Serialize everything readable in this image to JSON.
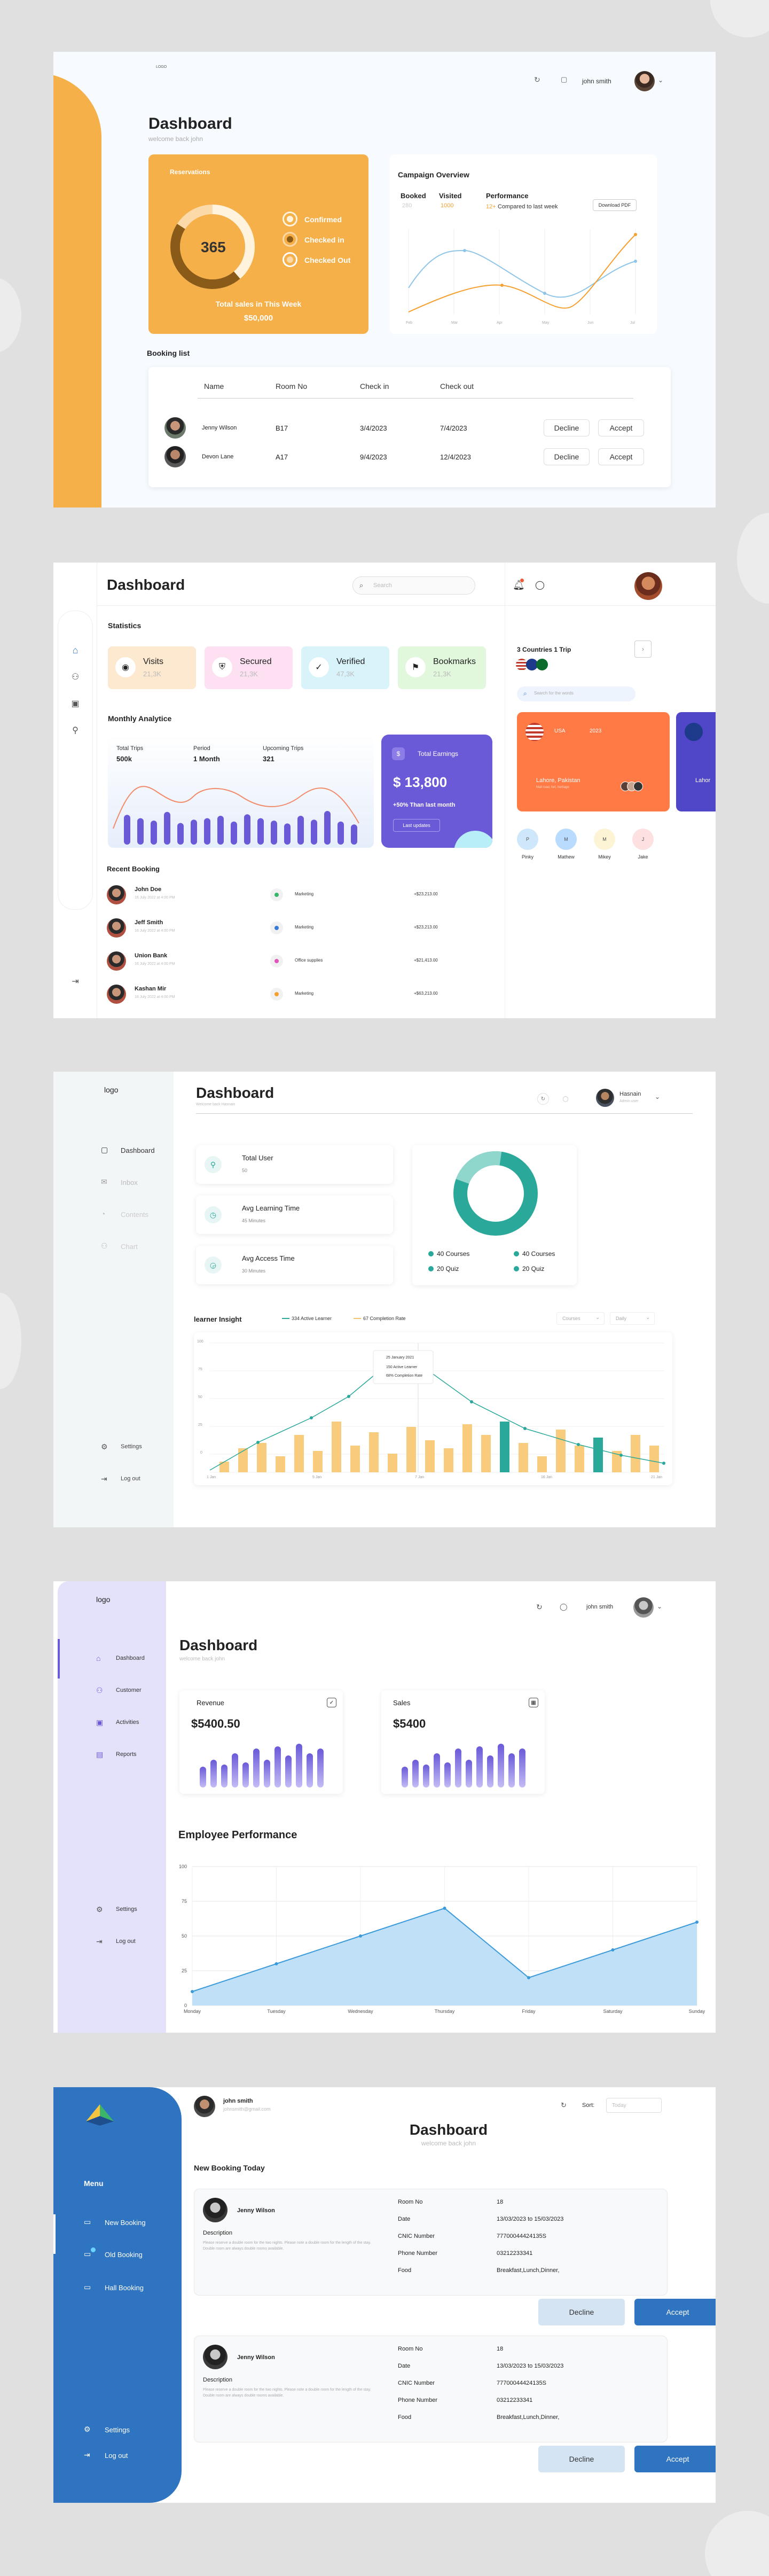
{
  "f1": {
    "brand": "LOGO",
    "user": "john smith",
    "title": "Dashboard",
    "subtitle": "welcome back john",
    "reservations": {
      "title": "Reservations",
      "total": "365",
      "legend": [
        "Confirmed",
        "Checked in",
        "Checked Out"
      ],
      "sales_label": "Total sales in This Week",
      "sales_value": "$50,000"
    },
    "campaign": {
      "title": "Campaign Overview",
      "booked_label": "Booked",
      "booked_value": "280",
      "visited_label": "Visited",
      "visited_value": "1000",
      "perf_label": "Performance",
      "perf_value": "12+",
      "perf_text": "Compared to last week",
      "download": "Download PDF",
      "x_labels": [
        "Feb",
        "Mar",
        "Apr",
        "May",
        "Jun",
        "Jul"
      ]
    },
    "booking": {
      "title": "Booking list",
      "headers": [
        "Name",
        "Room No",
        "Check in",
        "Check out"
      ],
      "rows": [
        {
          "name": "Jenny Wilson",
          "room": "B17",
          "in": "3/4/2023",
          "out": "7/4/2023"
        },
        {
          "name": "Devon Lane",
          "room": "A17",
          "in": "9/4/2023",
          "out": "12/4/2023"
        }
      ],
      "decline": "Decline",
      "accept": "Accept"
    }
  },
  "f2": {
    "title": "Dashboard",
    "search_placeholder": "Search",
    "stats_title": "Statistics",
    "stats": [
      {
        "label": "Visits",
        "value": "21,3K",
        "bg": "#fde9d0"
      },
      {
        "label": "Secured",
        "value": "21,3K",
        "bg": "#fde0f2"
      },
      {
        "label": "Verified",
        "value": "47,3K",
        "bg": "#d9f3fb"
      },
      {
        "label": "Bookmarks",
        "value": "21,3K",
        "bg": "#e2f8dd"
      }
    ],
    "analytics": {
      "title": "Monthly Analytice",
      "total_trips_label": "Total Trips",
      "total_trips": "500k",
      "period_label": "Period",
      "period": "1 Month",
      "upcoming_label": "Upcoming Trips",
      "upcoming": "321",
      "earn_title": "Total Earnings",
      "earn_value": "$ 13,800",
      "earn_delta": "+50% Than last month",
      "earn_btn": "Last updates",
      "bars": [
        0.62,
        0.55,
        0.5,
        0.68,
        0.45,
        0.52,
        0.55,
        0.6,
        0.48,
        0.63,
        0.55,
        0.5,
        0.44,
        0.6,
        0.52,
        0.7,
        0.48,
        0.42
      ]
    },
    "recent_title": "Recent Booking",
    "recent": [
      {
        "name": "John Doe",
        "date": "16 July 2022 at 4:00 PM",
        "cat": "Marketing",
        "amount": "+$23,213.00",
        "dot": "#3bb56a"
      },
      {
        "name": "Jeff Smith",
        "date": "16 July 2022 at 4:00 PM",
        "cat": "Marketing",
        "amount": "+$23,213.00",
        "dot": "#3a7bd5"
      },
      {
        "name": "Union Bank",
        "date": "16 July 2022 at 4:00 PM",
        "cat": "Office supplies",
        "amount": "+$21,413.00",
        "dot": "#e055b8"
      },
      {
        "name": "Kashan Mir",
        "date": "16 July 2022 at 4:00 PM",
        "cat": "Marketing",
        "amount": "+$63,213.00",
        "dot": "#f5a030"
      }
    ],
    "trip": {
      "title": "3 Countries 1 Trip",
      "search_placeholder": "Search for the words",
      "card_year": "USA",
      "card_year2": "2023",
      "card_place": "Lahore, Pakistan",
      "card_sub": "Mall road, fort, heritage",
      "card_place2": "Lahor",
      "people": [
        "Pinky",
        "Mathew",
        "Mikey",
        "Jake"
      ]
    }
  },
  "f3": {
    "brand": "logo",
    "nav": [
      "Dashboard",
      "Inbox",
      "Contents",
      "Chart"
    ],
    "settings": "Settings",
    "logout": "Log out",
    "title": "Dashboard",
    "subtitle": "Welcome back Hasnain",
    "user": "Hasnain",
    "user_sub": "Admin user",
    "kpis": [
      {
        "label": "Total User",
        "value": "50"
      },
      {
        "label": "Avg Learning Time",
        "value": "45 Minutes"
      },
      {
        "label": "Avg Access Time",
        "value": "30 Minutes"
      }
    ],
    "donut_legend": [
      "40 Courses",
      "40 Courses",
      "20 Quiz",
      "20 Quiz"
    ],
    "insight": {
      "title": "learner Insight",
      "legend": [
        "334 Active Learner",
        "67 Completion Rate"
      ],
      "filter1": "Courses",
      "filter2": "Daily",
      "yticks": [
        "100",
        "75",
        "50",
        "25",
        "0"
      ],
      "xticks": [
        "1 Jan",
        "5 Jan",
        "7 Jan",
        "16 Jan",
        "21 Jan"
      ],
      "tooltip": [
        "25 January 2021",
        "150 Active Learner",
        "68% Completion Rate"
      ]
    }
  },
  "f4": {
    "brand": "logo",
    "user": "john smith",
    "nav": [
      "Dashboard",
      "Customer",
      "Activities",
      "Reports"
    ],
    "settings": "Settings",
    "logout": "Log out",
    "title": "Dashboard",
    "subtitle": "welcome back john",
    "revenue_label": "Revenue",
    "revenue": "$5400.50",
    "sales_label": "Sales",
    "sales": "$5400",
    "perf_title": "Employee Performance",
    "chart_data": {
      "type": "area",
      "title": "Employee Performance",
      "categories": [
        "Monday",
        "Tuesday",
        "Wednesday",
        "Thursday",
        "Friday",
        "Saturday",
        "Sunday"
      ],
      "values": [
        10,
        30,
        50,
        70,
        20,
        40,
        60
      ],
      "ylim": [
        0,
        100
      ],
      "yticks": [
        "100",
        "75",
        "50",
        "25",
        "0"
      ],
      "color": "#3b9ad9"
    }
  },
  "f5": {
    "user": "john smith",
    "email": "johnsmith@gmail.com",
    "sort_label": "Sort:",
    "sort_value": "Today",
    "menu_title": "Menu",
    "nav": [
      "New Booking",
      "Old Booking",
      "Hall Booking"
    ],
    "settings": "Settings",
    "logout": "Log out",
    "title": "Dashboard",
    "subtitle": "welcome back john",
    "section": "New Booking Today",
    "bookings": [
      {
        "name": "Jenny Wilson",
        "desc_label": "Description",
        "desc": "Please reserve a double room for the two nights. Please note a double room for the length of the stay. Double room are always double rooms available.",
        "room": "18",
        "date": "13/03/2023 to 15/03/2023",
        "cnic": "77700044424135S",
        "phone": "03212233341",
        "food": "Breakfast,Lunch,Dinner,"
      },
      {
        "name": "Jenny Wilson",
        "desc_label": "Description",
        "desc": "Please reserve a double room for the two nights. Please note a double room for the length of the stay. Double room are always double rooms available.",
        "room": "18",
        "date": "13/03/2023 to 15/03/2023",
        "cnic": "77700044424135S",
        "phone": "03212233341",
        "food": "Breakfast,Lunch,Dinner,"
      }
    ],
    "keys": [
      "Room No",
      "Date",
      "CNIC Number",
      "Phone Number",
      "Food"
    ],
    "decline": "Decline",
    "accept": "Accept"
  }
}
